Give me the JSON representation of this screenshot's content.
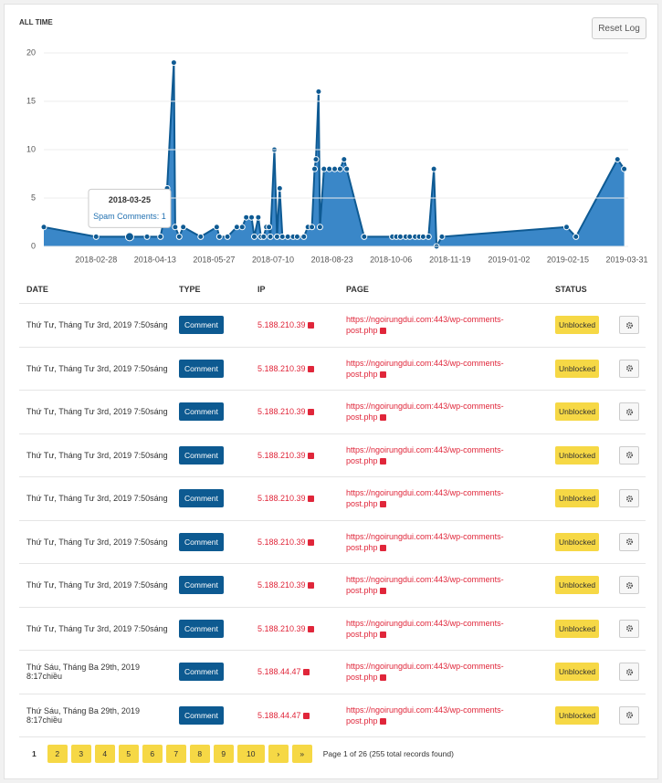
{
  "header": {
    "title": "ALL TIME",
    "button": "Reset Log"
  },
  "chart_data": {
    "type": "area",
    "series": [
      {
        "name": "Spam Comments",
        "color": "#0e5a93",
        "fill": "#3a87c8",
        "values": [
          2,
          1,
          1,
          1,
          1,
          3,
          6,
          19,
          2,
          1,
          2,
          1,
          2,
          1,
          1,
          2,
          2,
          3,
          3,
          1,
          3,
          1,
          1,
          2,
          2,
          1,
          10,
          1,
          6,
          1,
          1,
          1,
          1,
          1,
          2,
          2,
          8,
          9,
          16,
          2,
          8,
          8,
          8,
          8,
          9,
          8,
          1,
          1,
          1,
          1,
          1,
          1,
          1,
          1,
          1,
          1,
          8,
          0,
          1,
          2,
          1,
          9,
          8
        ]
      }
    ],
    "x": [
      "2018-01-20",
      "2018-02-28",
      "2018-03-25",
      "2018-04-07",
      "2018-04-17",
      "2018-04-20",
      "2018-04-22",
      "2018-04-27",
      "2018-04-28",
      "2018-05-01",
      "2018-05-04",
      "2018-05-17",
      "2018-05-29",
      "2018-05-31",
      "2018-06-06",
      "2018-06-13",
      "2018-06-17",
      "2018-06-20",
      "2018-06-24",
      "2018-06-26",
      "2018-06-29",
      "2018-07-01",
      "2018-07-03",
      "2018-07-05",
      "2018-07-07",
      "2018-07-08",
      "2018-07-11",
      "2018-07-13",
      "2018-07-15",
      "2018-07-17",
      "2018-07-21",
      "2018-07-25",
      "2018-07-28",
      "2018-08-02",
      "2018-08-05",
      "2018-08-08",
      "2018-08-10",
      "2018-08-11",
      "2018-08-13",
      "2018-08-14",
      "2018-08-17",
      "2018-08-21",
      "2018-08-25",
      "2018-08-29",
      "2018-09-01",
      "2018-09-03",
      "2018-09-16",
      "2018-10-07",
      "2018-10-10",
      "2018-10-13",
      "2018-10-17",
      "2018-10-20",
      "2018-10-24",
      "2018-10-27",
      "2018-10-30",
      "2018-11-03",
      "2018-11-07",
      "2018-11-09",
      "2018-11-13",
      "2019-02-14",
      "2019-02-21",
      "2019-03-24",
      "2019-03-29"
    ],
    "xlim": [
      "2018-01-20",
      "2019-04-01"
    ],
    "xticks": [
      "2018-02-28",
      "2018-04-13",
      "2018-05-27",
      "2018-07-10",
      "2018-08-23",
      "2018-10-06",
      "2018-11-19",
      "2019-01-02",
      "2019-02-15",
      "2019-03-31"
    ],
    "ylim": [
      0,
      21.6
    ],
    "yticks": [
      0,
      5,
      10,
      15,
      20
    ],
    "grid": true,
    "tooltip": {
      "title": "2018-03-25",
      "text": "Spam Comments: 1",
      "point": 2
    }
  },
  "table": {
    "columns": [
      "DATE",
      "TYPE",
      "IP",
      "PAGE",
      "STATUS"
    ],
    "rows": [
      [
        "Thứ Tư, Tháng Tư 3rd, 2019 7:50sáng",
        "Comment",
        "5.188.210.39",
        "https://ngoirungdui.com:443/wp-comments-post.php",
        "Unblocked"
      ],
      [
        "Thứ Tư, Tháng Tư 3rd, 2019 7:50sáng",
        "Comment",
        "5.188.210.39",
        "https://ngoirungdui.com:443/wp-comments-post.php",
        "Unblocked"
      ],
      [
        "Thứ Tư, Tháng Tư 3rd, 2019 7:50sáng",
        "Comment",
        "5.188.210.39",
        "https://ngoirungdui.com:443/wp-comments-post.php",
        "Unblocked"
      ],
      [
        "Thứ Tư, Tháng Tư 3rd, 2019 7:50sáng",
        "Comment",
        "5.188.210.39",
        "https://ngoirungdui.com:443/wp-comments-post.php",
        "Unblocked"
      ],
      [
        "Thứ Tư, Tháng Tư 3rd, 2019 7:50sáng",
        "Comment",
        "5.188.210.39",
        "https://ngoirungdui.com:443/wp-comments-post.php",
        "Unblocked"
      ],
      [
        "Thứ Tư, Tháng Tư 3rd, 2019 7:50sáng",
        "Comment",
        "5.188.210.39",
        "https://ngoirungdui.com:443/wp-comments-post.php",
        "Unblocked"
      ],
      [
        "Thứ Tư, Tháng Tư 3rd, 2019 7:50sáng",
        "Comment",
        "5.188.210.39",
        "https://ngoirungdui.com:443/wp-comments-post.php",
        "Unblocked"
      ],
      [
        "Thứ Tư, Tháng Tư 3rd, 2019 7:50sáng",
        "Comment",
        "5.188.210.39",
        "https://ngoirungdui.com:443/wp-comments-post.php",
        "Unblocked"
      ],
      [
        "Thứ Sáu, Tháng Ba 29th, 2019 8:17chiều",
        "Comment",
        "5.188.44.47",
        "https://ngoirungdui.com:443/wp-comments-post.php",
        "Unblocked"
      ],
      [
        "Thứ Sáu, Tháng Ba 29th, 2019 8:17chiều",
        "Comment",
        "5.188.44.47",
        "https://ngoirungdui.com:443/wp-comments-post.php",
        "Unblocked"
      ]
    ]
  },
  "pagination": {
    "current": "1",
    "pages": [
      "2",
      "3",
      "4",
      "5",
      "6",
      "7",
      "8",
      "9",
      "10",
      "›",
      "»"
    ],
    "summary": "Page 1 of 26 (255 total records found)"
  }
}
